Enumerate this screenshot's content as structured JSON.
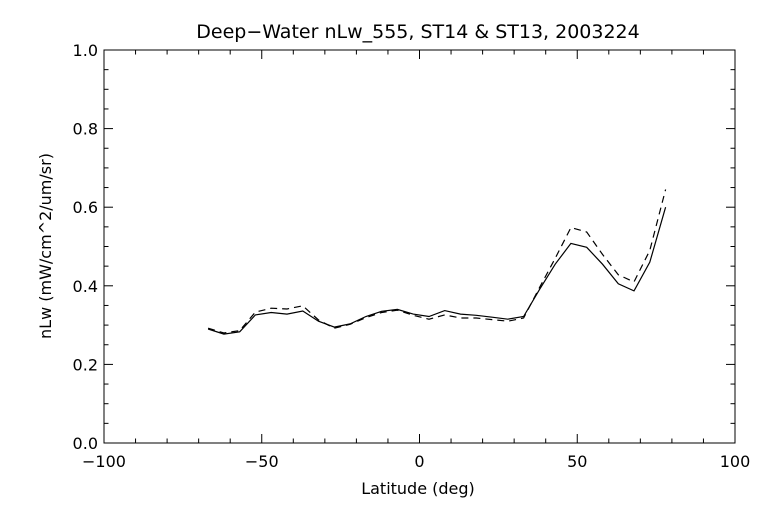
{
  "chart_data": {
    "type": "line",
    "title": "Deep−Water nLw_555, ST14 & ST13, 2003224",
    "xlabel": "Latitude (deg)",
    "ylabel": "nLw (mW/cm^2/um/sr)",
    "xlim": [
      -100,
      100
    ],
    "ylim": [
      0.0,
      1.0
    ],
    "x_ticks": [
      -100,
      -50,
      0,
      50,
      100
    ],
    "x_tick_labels": [
      "−100",
      "−50",
      "0",
      "50",
      "100"
    ],
    "y_ticks": [
      0.0,
      0.2,
      0.4,
      0.6,
      0.8,
      1.0
    ],
    "y_tick_labels": [
      "0.0",
      "0.2",
      "0.4",
      "0.6",
      "0.8",
      "1.0"
    ],
    "grid": false,
    "legend": "none",
    "series": [
      {
        "line_style": "solid",
        "color": "#000000",
        "x": [
          -67,
          -62,
          -57,
          -52,
          -47,
          -42,
          -37,
          -32,
          -27,
          -22,
          -17,
          -12,
          -7,
          -2,
          3,
          8,
          13,
          18,
          23,
          28,
          33,
          38,
          43,
          48,
          53,
          58,
          63,
          68,
          73,
          78
        ],
        "y": [
          0.29,
          0.277,
          0.283,
          0.326,
          0.332,
          0.328,
          0.336,
          0.31,
          0.295,
          0.303,
          0.322,
          0.335,
          0.34,
          0.328,
          0.322,
          0.337,
          0.328,
          0.325,
          0.32,
          0.315,
          0.322,
          0.39,
          0.455,
          0.508,
          0.498,
          0.455,
          0.405,
          0.387,
          0.46,
          0.6
        ]
      },
      {
        "line_style": "dashed",
        "color": "#000000",
        "x": [
          -67,
          -62,
          -57,
          -52,
          -47,
          -42,
          -37,
          -32,
          -27,
          -22,
          -17,
          -12,
          -7,
          -2,
          3,
          8,
          13,
          18,
          23,
          28,
          33,
          38,
          43,
          48,
          53,
          58,
          63,
          68,
          73,
          78
        ],
        "y": [
          0.292,
          0.28,
          0.286,
          0.333,
          0.343,
          0.341,
          0.349,
          0.313,
          0.292,
          0.302,
          0.319,
          0.332,
          0.338,
          0.325,
          0.315,
          0.326,
          0.318,
          0.318,
          0.314,
          0.31,
          0.318,
          0.395,
          0.47,
          0.548,
          0.537,
          0.48,
          0.428,
          0.41,
          0.49,
          0.645
        ]
      }
    ]
  }
}
